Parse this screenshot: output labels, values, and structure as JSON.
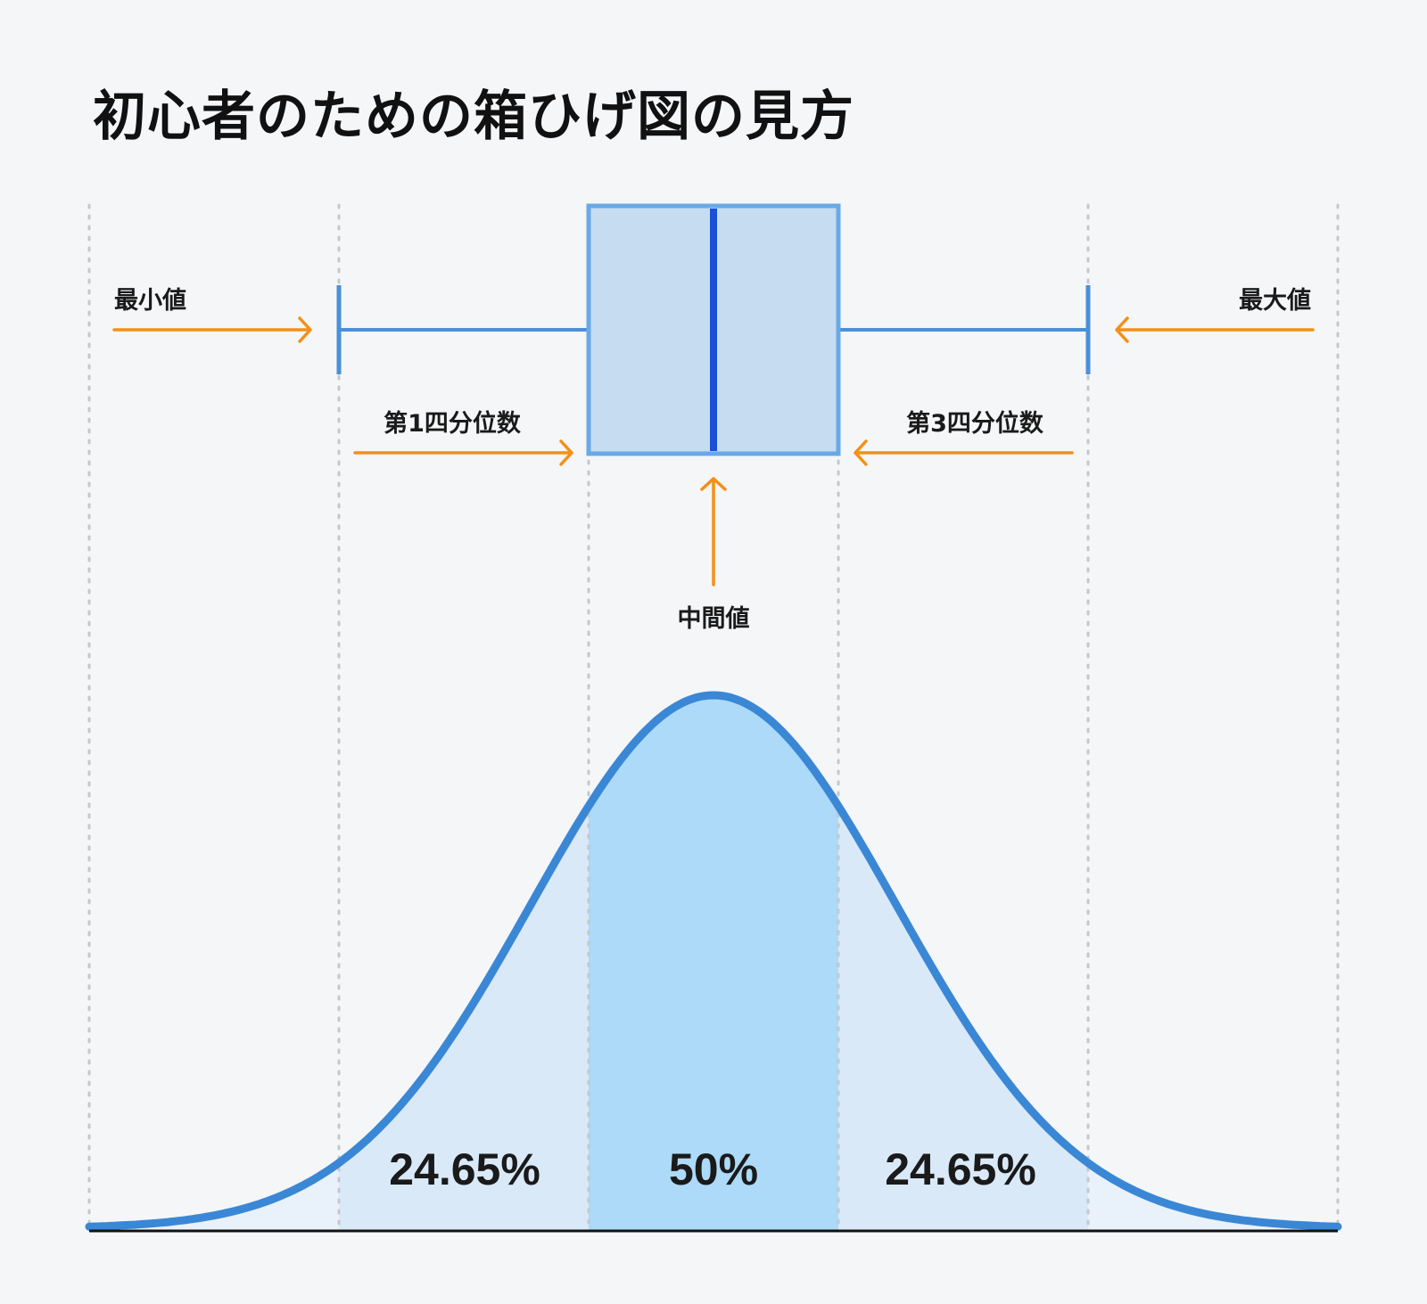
{
  "title": "初心者のための箱ひげ図の見方",
  "labels": {
    "min": "最小値",
    "max": "最大値",
    "q1": "第1四分位数",
    "q3": "第3四分位数",
    "median": "中間値"
  },
  "percentages": {
    "left": "24.65%",
    "center": "50%",
    "right": "24.65%"
  },
  "colors": {
    "curve": "#3a87d6",
    "box_fill": "#c6dcf0",
    "box_stroke": "#69a9e5",
    "median_line": "#1a4fd6",
    "whisker": "#4a90d9",
    "arrow": "#f39017",
    "tail_fill": "#e9f1fa",
    "side_fill": "#d9e9f8",
    "center_fill": "#acdaf8",
    "guide": "#c4c8cc",
    "baseline": "#111111"
  }
}
